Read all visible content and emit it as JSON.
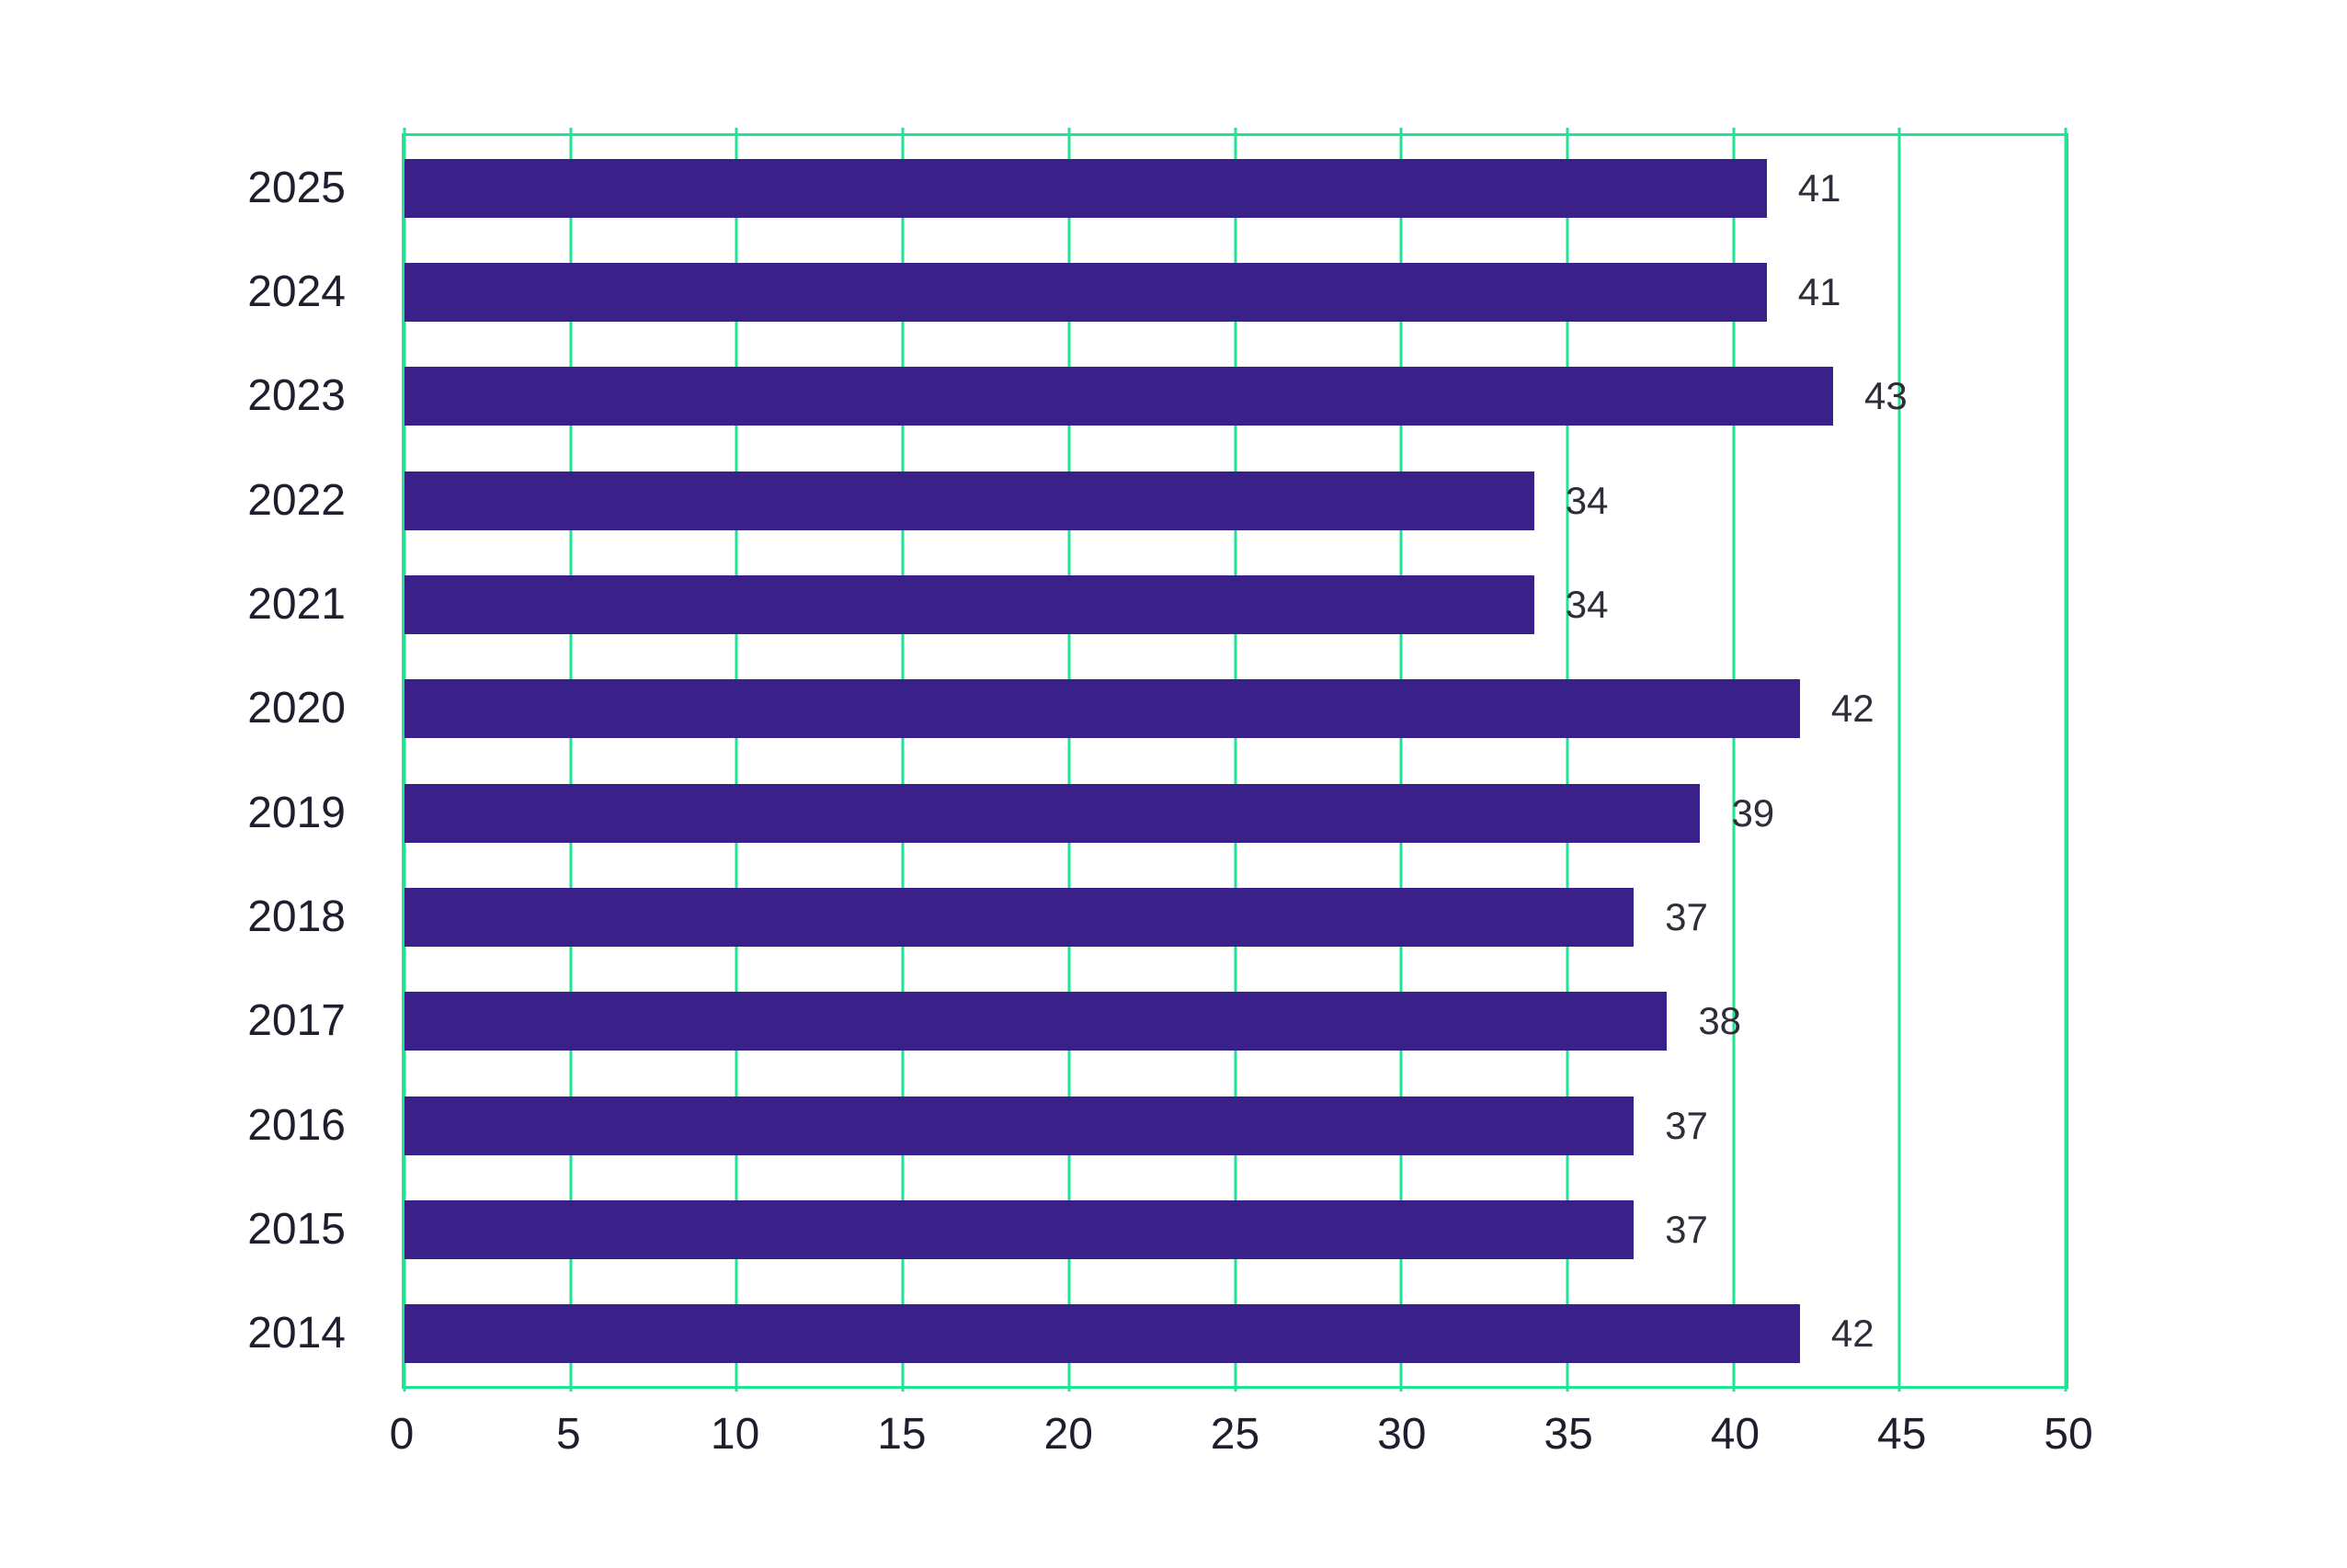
{
  "colors": {
    "background": "#ffffff",
    "bar": "#3a2089",
    "grid": "#1de592",
    "axis_text": "#1e1e2e",
    "value_text": "#2e2e3a"
  },
  "chart_data": {
    "type": "bar",
    "orientation": "horizontal",
    "title": "",
    "xlabel": "",
    "ylabel": "",
    "categories": [
      "2025",
      "2024",
      "2023",
      "2022",
      "2021",
      "2020",
      "2019",
      "2018",
      "2017",
      "2016",
      "2015",
      "2014"
    ],
    "values": [
      41,
      41,
      43,
      34,
      34,
      42,
      39,
      37,
      38,
      37,
      37,
      42
    ],
    "xlim": [
      0,
      50
    ],
    "xticks": [
      0,
      5,
      10,
      15,
      20,
      25,
      30,
      35,
      40,
      45,
      50
    ],
    "grid": "vertical",
    "legend_position": "none",
    "value_labels_shown": true
  }
}
